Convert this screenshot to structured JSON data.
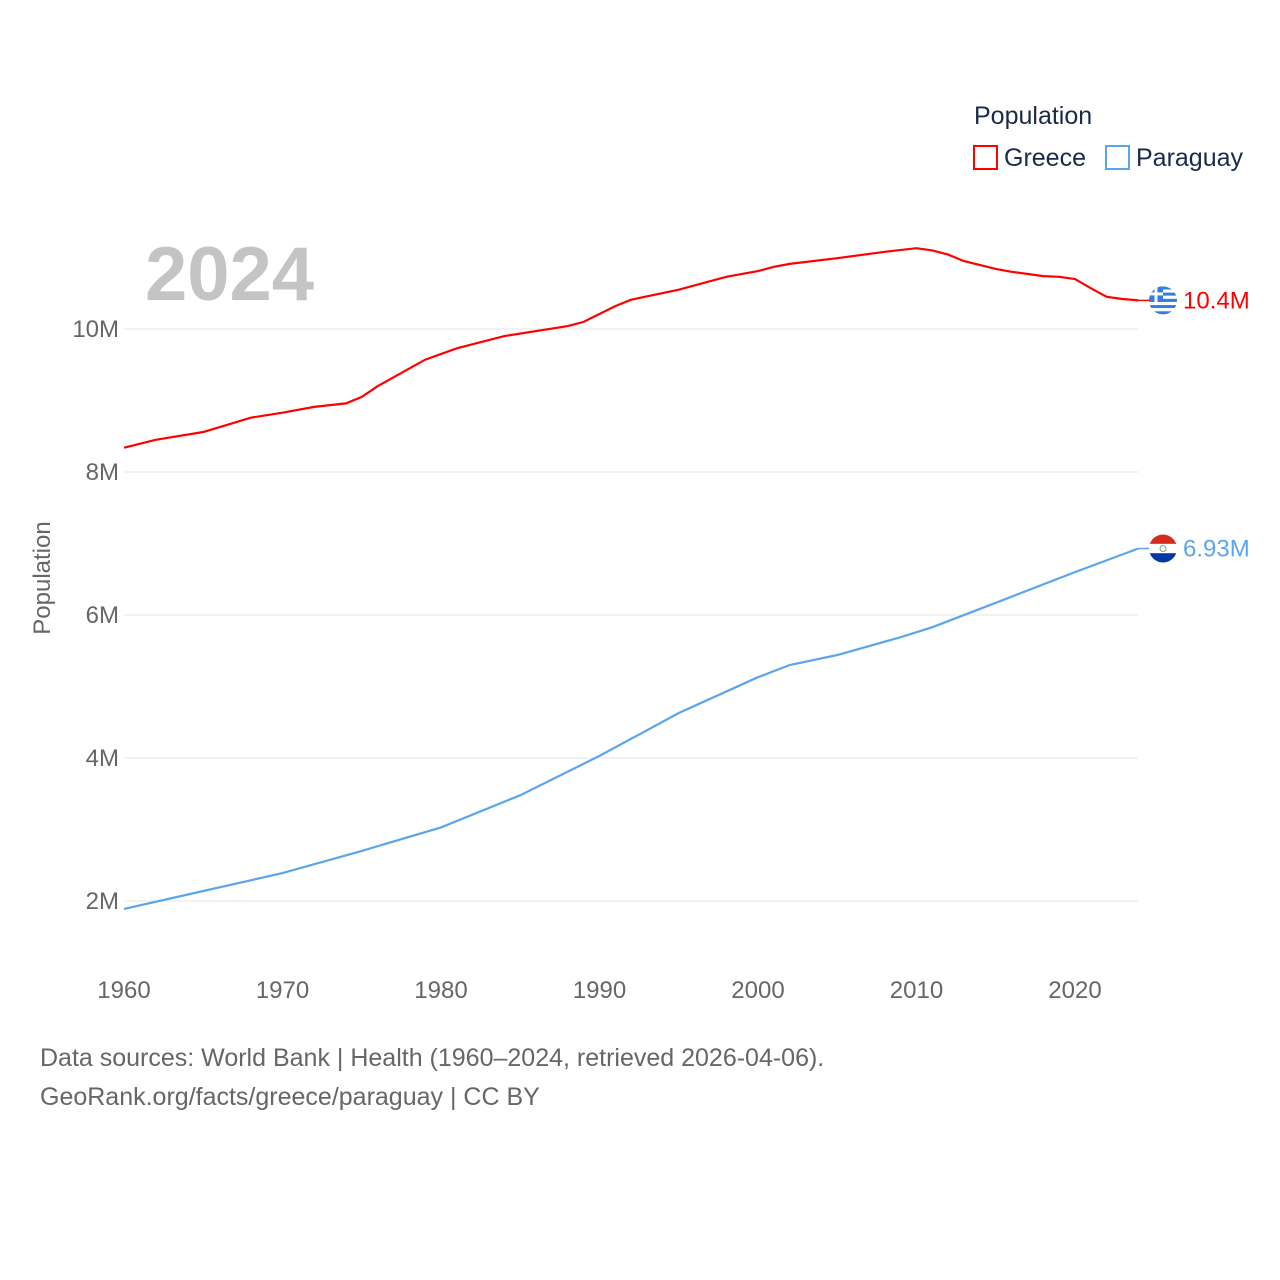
{
  "chart_data": {
    "type": "line",
    "year_label": "2024",
    "ylabel": "Population",
    "xlabel": "",
    "legend": {
      "title": "Population",
      "placement": "top-right"
    },
    "xlim": [
      1960,
      2024
    ],
    "ylim": [
      1.5,
      11.8
    ],
    "y_ticks": [
      {
        "v": 2,
        "label": "2M"
      },
      {
        "v": 4,
        "label": "4M"
      },
      {
        "v": 6,
        "label": "6M"
      },
      {
        "v": 8,
        "label": "8M"
      },
      {
        "v": 10,
        "label": "10M"
      }
    ],
    "x_ticks": [
      1960,
      1970,
      1980,
      1990,
      2000,
      2010,
      2020
    ],
    "grid": true,
    "series": [
      {
        "name": "Greece",
        "color": "#ff0000",
        "end_label": "10.4M",
        "flag": "greece-flag",
        "x": [
          1960,
          1962,
          1965,
          1968,
          1970,
          1972,
          1974,
          1975,
          1976,
          1979,
          1981,
          1984,
          1988,
          1989,
          1991,
          1992,
          1995,
          1998,
          2000,
          2001,
          2002,
          2005,
          2008,
          2010,
          2011,
          2012,
          2013,
          2015,
          2016,
          2018,
          2019,
          2020,
          2021,
          2022,
          2023,
          2024
        ],
        "y": [
          8.34,
          8.45,
          8.56,
          8.76,
          8.83,
          8.91,
          8.96,
          9.05,
          9.2,
          9.57,
          9.73,
          9.9,
          10.04,
          10.1,
          10.32,
          10.41,
          10.55,
          10.73,
          10.81,
          10.87,
          10.91,
          10.99,
          11.08,
          11.13,
          11.1,
          11.04,
          10.95,
          10.84,
          10.8,
          10.74,
          10.73,
          10.7,
          10.57,
          10.45,
          10.42,
          10.4
        ]
      },
      {
        "name": "Paraguay",
        "color": "#5aa5eb",
        "end_label": "6.93M",
        "flag": "paraguay-flag",
        "x": [
          1960,
          1965,
          1970,
          1975,
          1980,
          1985,
          1990,
          1995,
          2000,
          2002,
          2005,
          2009,
          2011,
          2015,
          2020,
          2024
        ],
        "y": [
          1.89,
          2.14,
          2.39,
          2.7,
          3.03,
          3.48,
          4.03,
          4.63,
          5.13,
          5.3,
          5.44,
          5.69,
          5.83,
          6.17,
          6.6,
          6.93
        ]
      }
    ]
  },
  "footer": {
    "line1": "Data sources: World Bank | Health (1960–2024, retrieved 2026-04-06).",
    "line2": "GeoRank.org/facts/greece/paraguay | CC BY"
  }
}
